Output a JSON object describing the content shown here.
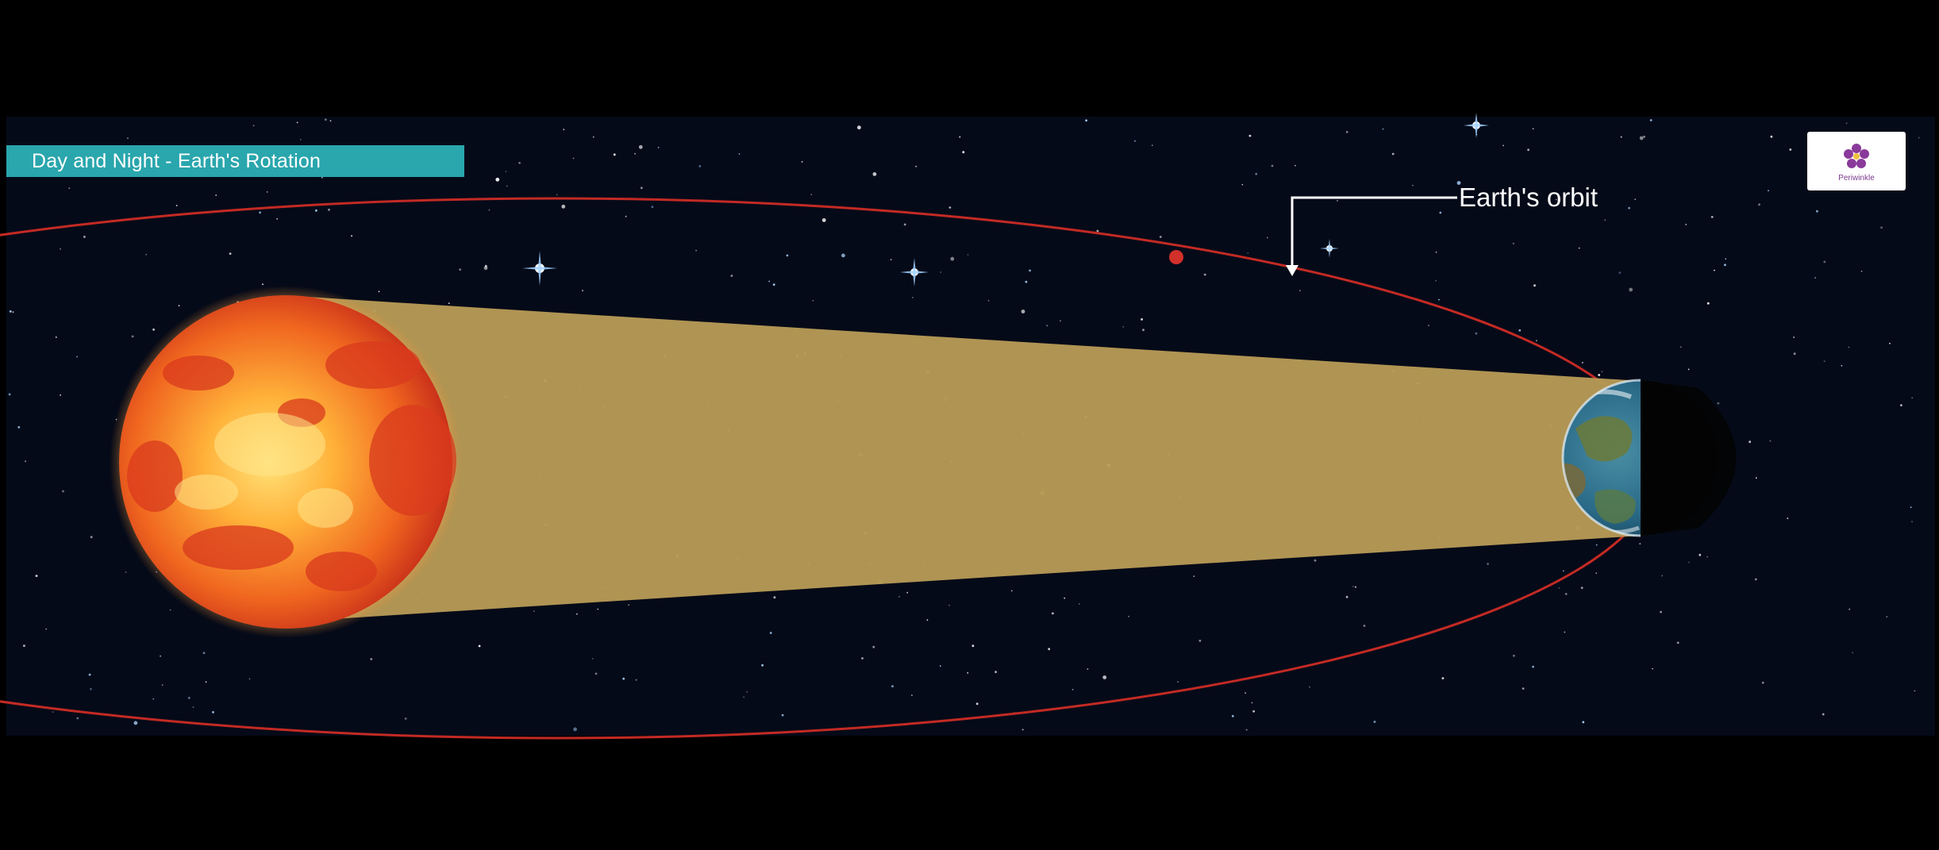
{
  "title": "Day and Night - Earth's Rotation",
  "labels": {
    "orbit": "Earth's orbit"
  },
  "logo": {
    "text": "Periwinkle",
    "icon": "flower-logo-icon"
  },
  "colors": {
    "background": "#000000",
    "space": "#050a18",
    "banner": "#2aa6ad",
    "orbit": "#c42a24",
    "sunlight_beam": "#b79a55",
    "sun_core": "#ffd24a",
    "sun_edge": "#e3401c",
    "earth_ocean": "#2a6a88",
    "earth_night": "#030303",
    "logo_bg": "#ffffff",
    "logo_flower": "#8a3a9a"
  }
}
